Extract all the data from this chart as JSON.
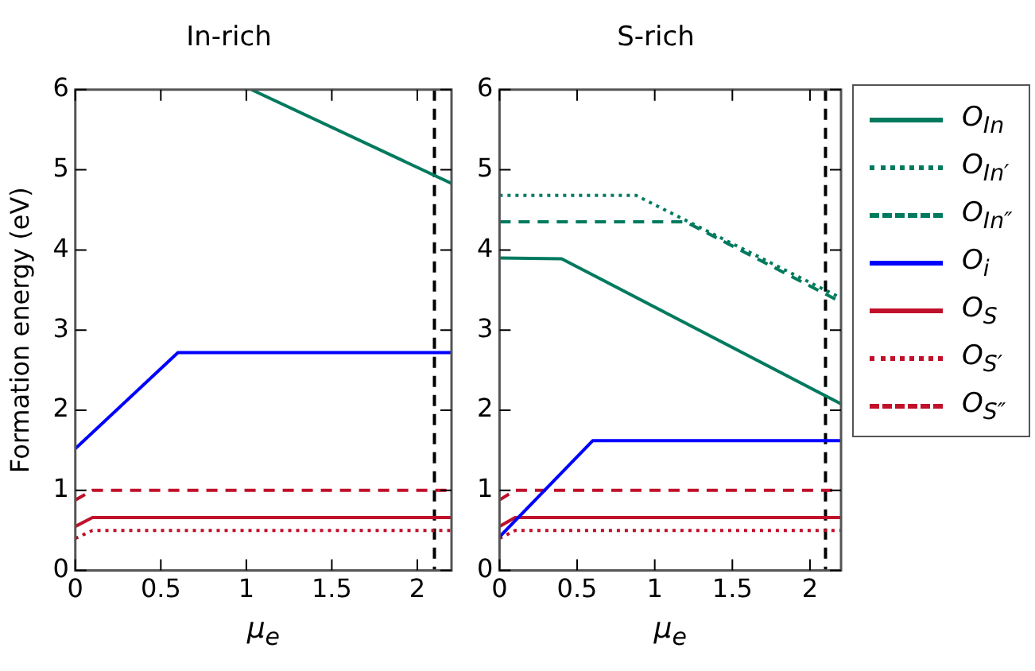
{
  "chart_data": [
    {
      "type": "line",
      "title": "In-rich",
      "xlabel": "μ$_{e}$",
      "ylabel": "Formation energy (eV)",
      "xlim": [
        0,
        2.2
      ],
      "xticks": [
        0,
        0.5,
        1,
        1.5,
        2
      ],
      "ylim": [
        0,
        6
      ],
      "yticks": [
        0,
        1,
        2,
        3,
        4,
        5,
        6
      ],
      "grid": false,
      "legend": false,
      "ref_lines": [
        {
          "axis": "x",
          "value": 2.1,
          "color": "#000000",
          "line_style": "dashed"
        }
      ],
      "series": [
        {
          "color": "#007a5e",
          "line_style": "solid",
          "x": [
            1.03,
            2.2
          ],
          "values": [
            6,
            4.83
          ]
        },
        {
          "color": "#0000ff",
          "line_style": "solid",
          "x": [
            0,
            0.6,
            2.2
          ],
          "values": [
            1.52,
            2.72,
            2.72
          ]
        },
        {
          "color": "#c0102a",
          "line_style": "solid",
          "x": [
            0,
            0.1,
            2.2
          ],
          "values": [
            0.55,
            0.66,
            0.66
          ]
        },
        {
          "color": "#c0102a",
          "line_style": "dotted",
          "x": [
            0,
            0.1,
            2.2
          ],
          "values": [
            0.4,
            0.5,
            0.5
          ]
        },
        {
          "color": "#c0102a",
          "line_style": "dashed",
          "x": [
            0,
            0.1,
            2.2
          ],
          "values": [
            0.88,
            1,
            1
          ]
        }
      ]
    },
    {
      "type": "line",
      "title": "S-rich",
      "xlabel": "μ$_{e}$",
      "xlim": [
        0,
        2.2
      ],
      "xticks": [
        0,
        0.5,
        1,
        1.5,
        2
      ],
      "ylim": [
        0,
        6
      ],
      "yticks": [
        0,
        1,
        2,
        3,
        4,
        5,
        6
      ],
      "grid": false,
      "legend": "right",
      "ref_lines": [
        {
          "axis": "x",
          "value": 2.1,
          "color": "#000000",
          "line_style": "dashed"
        }
      ],
      "series": [
        {
          "name": "O$_{In}$",
          "color": "#007a5e",
          "line_style": "solid",
          "x": [
            0,
            0.4,
            2.2
          ],
          "values": [
            3.9,
            3.89,
            2.08
          ]
        },
        {
          "name": "O$_{In′}$",
          "color": "#007a5e",
          "line_style": "dotted",
          "x": [
            0,
            0.88,
            2.2
          ],
          "values": [
            4.68,
            4.68,
            3.4
          ]
        },
        {
          "name": "O$_{In″}$",
          "color": "#007a5e",
          "line_style": "dashed",
          "x": [
            0,
            1.2,
            2.2
          ],
          "values": [
            4.35,
            4.35,
            3.35
          ]
        },
        {
          "name": "O$_{i}$",
          "color": "#0000ff",
          "line_style": "solid",
          "x": [
            0,
            0.6,
            2.2
          ],
          "values": [
            0.42,
            1.62,
            1.62
          ]
        },
        {
          "name": "O$_{S}$",
          "color": "#c0102a",
          "line_style": "solid",
          "x": [
            0,
            0.1,
            2.2
          ],
          "values": [
            0.55,
            0.66,
            0.66
          ]
        },
        {
          "name": "O$_{S′}$",
          "color": "#c0102a",
          "line_style": "dotted",
          "x": [
            0,
            0.1,
            2.2
          ],
          "values": [
            0.4,
            0.5,
            0.5
          ]
        },
        {
          "name": "O$_{S″}$",
          "color": "#c0102a",
          "line_style": "dashed",
          "x": [
            0,
            0.1,
            2.2
          ],
          "values": [
            0.88,
            1,
            1
          ]
        }
      ]
    }
  ]
}
